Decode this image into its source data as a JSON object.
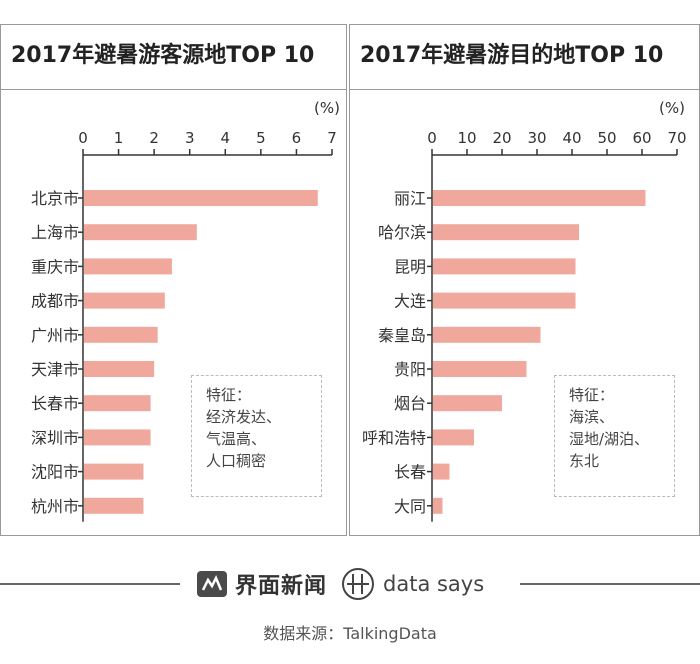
{
  "chart_data": [
    {
      "type": "bar",
      "orientation": "horizontal",
      "title": "2017年避暑游客源地TOP 10",
      "unit_label": "(%)",
      "categories": [
        "北京市",
        "上海市",
        "重庆市",
        "成都市",
        "广州市",
        "天津市",
        "长春市",
        "深圳市",
        "沈阳市",
        "杭州市"
      ],
      "values": [
        6.6,
        3.2,
        2.5,
        2.3,
        2.1,
        2.0,
        1.9,
        1.9,
        1.7,
        1.7
      ],
      "xlim": [
        0,
        7
      ],
      "ticks": [
        0,
        1,
        2,
        3,
        4,
        5,
        6,
        7
      ],
      "bar_color": "#f0a89d"
    },
    {
      "type": "bar",
      "orientation": "horizontal",
      "title": "2017年避暑游目的地TOP 10",
      "unit_label": "(%)",
      "categories": [
        "丽江",
        "哈尔滨",
        "昆明",
        "大连",
        "秦皇岛",
        "贵阳",
        "烟台",
        "呼和浩特",
        "长春",
        "大同"
      ],
      "values": [
        61,
        42,
        41,
        41,
        31,
        27,
        20,
        12,
        5,
        3
      ],
      "xlim": [
        0,
        70
      ],
      "ticks": [
        0,
        10,
        20,
        30,
        40,
        50,
        60,
        70
      ],
      "bar_color": "#f0a89d"
    }
  ],
  "notes": {
    "left": [
      "特征：",
      "经济发达、",
      "气温高、",
      "人口稠密"
    ],
    "right": [
      "特征：",
      "海滨、",
      "湿地/湖泊、",
      "东北"
    ]
  },
  "footer": {
    "brand": "界面新闻",
    "datasays": "data says",
    "source": "数据来源：TalkingData"
  },
  "colors": {
    "bar": "#f0a89d",
    "axis": "#333333"
  }
}
